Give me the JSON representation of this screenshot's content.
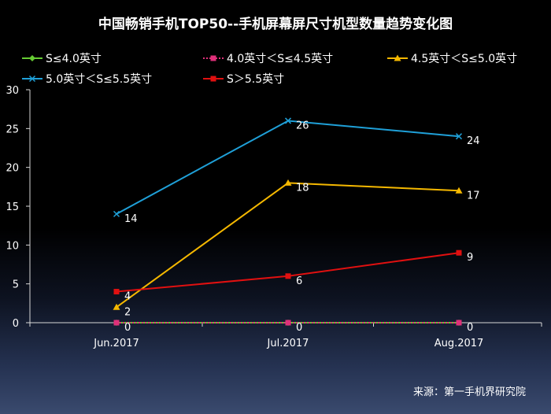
{
  "chart_data": {
    "type": "line",
    "title": "中国畅销手机TOP50--手机屏幕屏尺寸机型数量趋势变化图",
    "categories": [
      "Jun.2017",
      "Jul.2017",
      "Aug.2017"
    ],
    "ylim": [
      0,
      30
    ],
    "yticks": [
      0,
      5,
      10,
      15,
      20,
      25,
      30
    ],
    "grid": false,
    "legend_position": "top",
    "series": [
      {
        "name": "S≤4.0英寸",
        "values": [
          0,
          0,
          0
        ],
        "color": "#66cc33",
        "marker": "diamond",
        "dash": "solid",
        "show_labels": false
      },
      {
        "name": "4.0英寸＜S≤4.5英寸",
        "values": [
          0,
          0,
          0
        ],
        "color": "#e0307a",
        "marker": "square",
        "dash": "dotted",
        "show_labels": true
      },
      {
        "name": "4.5英寸＜S≤5.0英寸",
        "values": [
          2,
          18,
          17
        ],
        "color": "#f5b800",
        "marker": "triangle",
        "dash": "solid",
        "show_labels": true
      },
      {
        "name": "5.0英寸＜S≤5.5英寸",
        "values": [
          14,
          26,
          24
        ],
        "color": "#1fa0d8",
        "marker": "x",
        "dash": "solid",
        "show_labels": true
      },
      {
        "name": "S＞5.5英寸",
        "values": [
          4,
          6,
          9
        ],
        "color": "#e01010",
        "marker": "square",
        "dash": "solid",
        "show_labels": true
      }
    ],
    "source": "来源：第一手机界研究院"
  }
}
